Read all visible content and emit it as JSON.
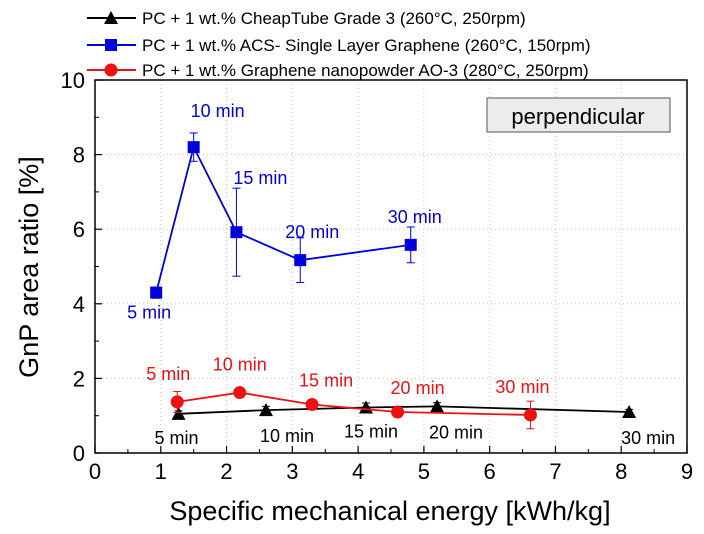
{
  "chart_data": {
    "type": "line",
    "title": "",
    "xlabel": "Specific mechanical energy [kWh/kg]",
    "ylabel": "GnP area ratio [%]",
    "xlim": [
      0,
      9
    ],
    "ylim": [
      0,
      10
    ],
    "xticks": [
      "0",
      "1",
      "2",
      "3",
      "4",
      "5",
      "6",
      "7",
      "8",
      "9"
    ],
    "yticks": [
      "0",
      "2",
      "4",
      "6",
      "8",
      "10"
    ],
    "grid": true,
    "legend_position": "top",
    "annotation": "perpendicular",
    "series": [
      {
        "name": "PC + 1 wt.% CheapTube Grade 3 (260°C, 250rpm)",
        "color": "#000000",
        "marker": "triangle",
        "x": [
          1.27,
          2.6,
          4.12,
          5.2,
          8.12
        ],
        "y": [
          1.05,
          1.15,
          1.22,
          1.25,
          1.1
        ],
        "err": [
          0.08,
          0.1,
          0.12,
          0.1,
          0.07
        ],
        "labels": [
          "5 min",
          "10 min",
          "15 min",
          "20 min",
          "30 min"
        ]
      },
      {
        "name": "PC + 1 wt.% ACS- Single Layer Graphene (260°C, 150rpm)",
        "color": "#0000dd",
        "marker": "square",
        "x": [
          0.93,
          1.5,
          2.15,
          3.12,
          4.8
        ],
        "y": [
          4.3,
          8.2,
          5.92,
          5.17,
          5.58
        ],
        "err": [
          0.15,
          0.38,
          1.18,
          0.6,
          0.48
        ],
        "labels": [
          "5 min",
          "10 min",
          "15 min",
          "20 min",
          "30 min"
        ]
      },
      {
        "name": "PC + 1 wt.% Graphene nanopowder AO-3 (280°C, 250rpm)",
        "color": "#ee1111",
        "marker": "circle",
        "x": [
          1.25,
          2.2,
          3.3,
          4.6,
          6.62
        ],
        "y": [
          1.37,
          1.62,
          1.3,
          1.1,
          1.02
        ],
        "err": [
          0.28,
          0.08,
          0.1,
          0.12,
          0.37
        ],
        "labels": [
          "5 min",
          "10 min",
          "15 min",
          "20 min",
          "30 min"
        ]
      }
    ]
  }
}
